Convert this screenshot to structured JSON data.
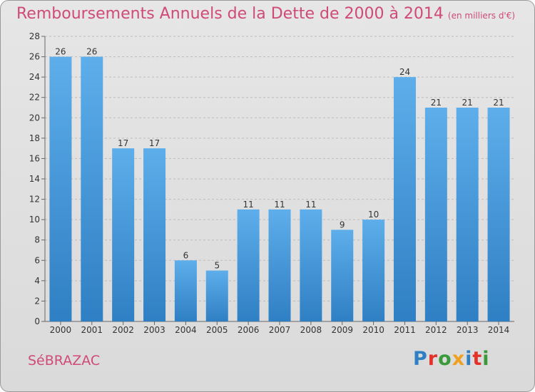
{
  "header": {
    "title": "Remboursements Annuels de la Dette de 2000 à 2014",
    "unit": "(en milliers d'€)"
  },
  "footer": {
    "commune": "SéBRAZAC",
    "logo_letters": [
      "P",
      "r",
      "o",
      "x",
      "i",
      "t",
      "i"
    ],
    "logo_colors": [
      "#2e7fc4",
      "#e3322a",
      "#3a9a3a",
      "#f0a020",
      "#2e7fc4",
      "#e3322a",
      "#3a9a3a"
    ]
  },
  "colors": {
    "bar_light": "#5daeea",
    "bar_dark": "#2f7fc4",
    "title": "#d04a78"
  },
  "chart_data": {
    "type": "bar",
    "categories": [
      "2000",
      "2001",
      "2002",
      "2003",
      "2004",
      "2005",
      "2006",
      "2007",
      "2008",
      "2009",
      "2010",
      "2011",
      "2012",
      "2013",
      "2014"
    ],
    "values": [
      26,
      26,
      17,
      17,
      6,
      5,
      11,
      11,
      11,
      9,
      10,
      24,
      21,
      21,
      21
    ],
    "ylim": [
      0,
      28
    ],
    "yticks": [
      0,
      2,
      4,
      6,
      8,
      10,
      12,
      14,
      16,
      18,
      20,
      22,
      24,
      26,
      28
    ],
    "grid": true,
    "data_labels": true
  }
}
